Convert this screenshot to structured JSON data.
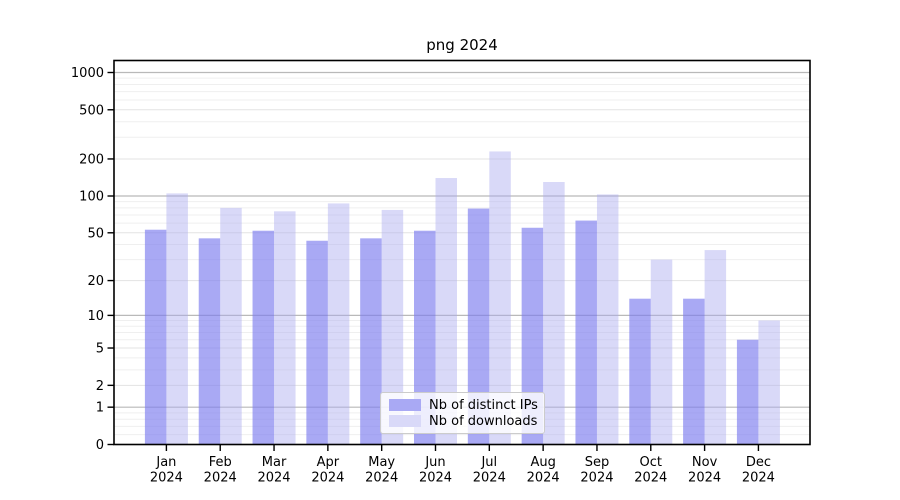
{
  "figure": {
    "background": "#ffffff"
  },
  "chart_data": {
    "type": "bar",
    "title": "png 2024",
    "categories": [
      "Jan",
      "Feb",
      "Mar",
      "Apr",
      "May",
      "Jun",
      "Jul",
      "Aug",
      "Sep",
      "Oct",
      "Nov",
      "Dec"
    ],
    "year_label": "2024",
    "series": [
      {
        "name": "Nb of distinct IPs",
        "color": "rgba(125,125,238,0.66)",
        "legend_color": "#a9a9f4",
        "values": [
          53,
          45,
          52,
          43,
          45,
          52,
          79,
          55,
          63,
          14,
          14,
          6
        ]
      },
      {
        "name": "Nb of downloads",
        "color": "rgba(170,170,240,0.45)",
        "legend_color": "#d9d9f8",
        "values": [
          105,
          80,
          75,
          87,
          77,
          140,
          230,
          130,
          103,
          30,
          36,
          9
        ]
      }
    ],
    "yscale": "log1p",
    "yticks": [
      0,
      1,
      2,
      5,
      10,
      20,
      50,
      100,
      200,
      500,
      1000
    ],
    "ylim": [
      0,
      1250
    ],
    "grid": true,
    "legend_position": "lower center",
    "colors": {
      "grid_major": "#b9b9b9",
      "grid_mid": "#e3e3e3",
      "grid_minor": "#efefef",
      "spine": "#000000",
      "text": "#000000"
    }
  }
}
